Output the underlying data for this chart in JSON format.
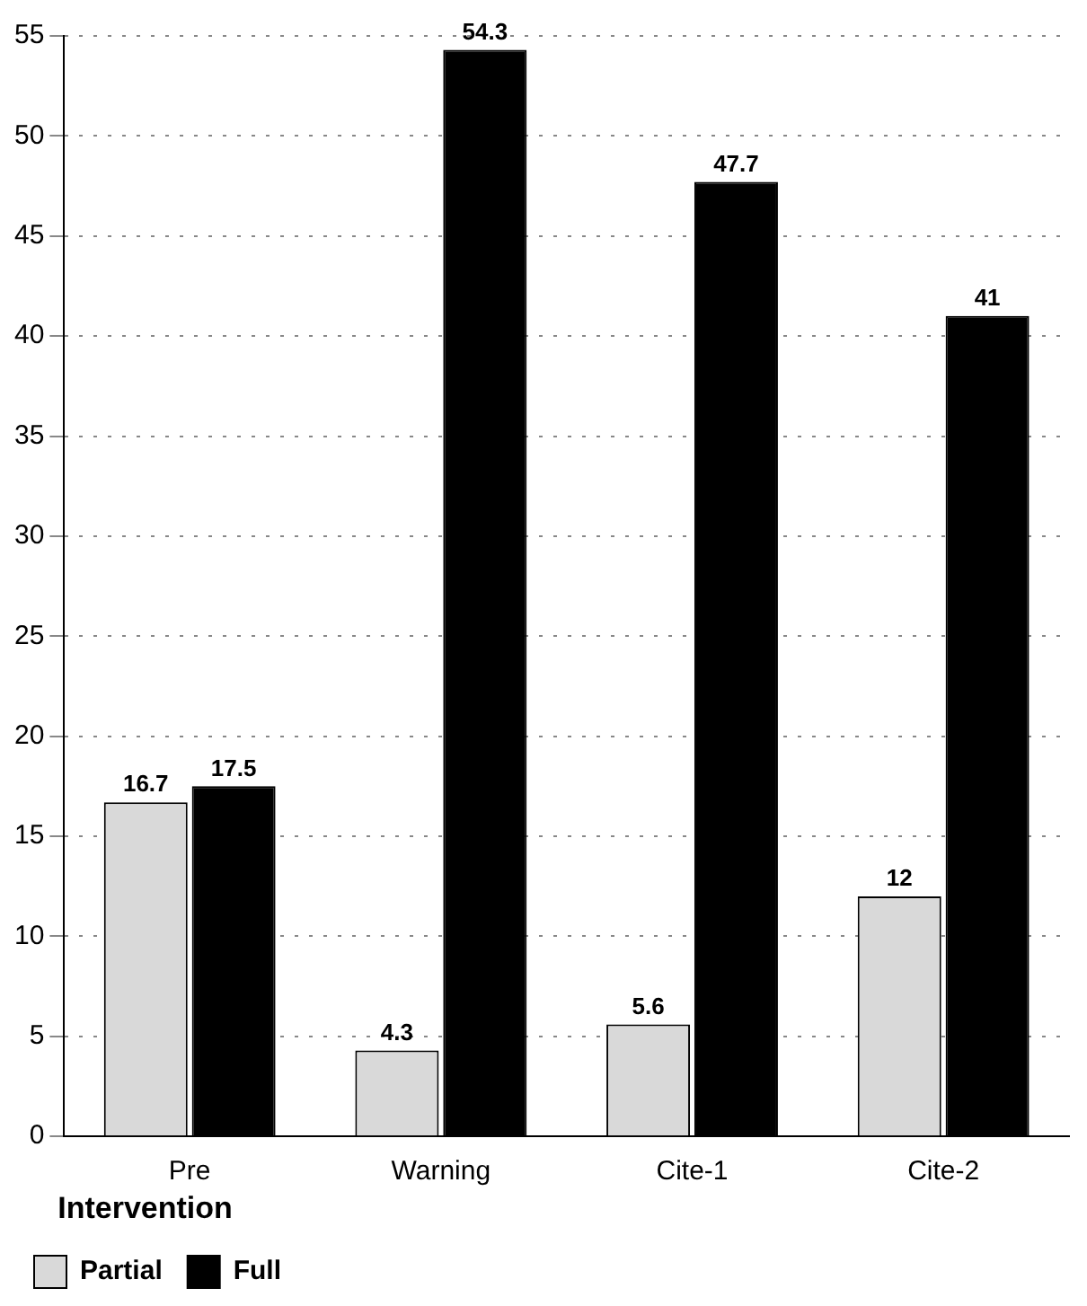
{
  "chart_data": {
    "type": "bar",
    "categories": [
      "Pre",
      "Warning",
      "Cite-1",
      "Cite-2"
    ],
    "series": [
      {
        "name": "Partial",
        "color": "#d9d9d9",
        "values": [
          16.7,
          4.3,
          5.6,
          12
        ]
      },
      {
        "name": "Full",
        "color": "#000000",
        "values": [
          17.5,
          54.3,
          47.7,
          41
        ]
      }
    ],
    "ylim": [
      0,
      55
    ],
    "yticks": [
      0,
      5,
      10,
      15,
      20,
      25,
      30,
      35,
      40,
      45,
      50,
      55
    ],
    "grid": "y",
    "legend": "bottom left",
    "legend_title": "Intervention",
    "data_labels": true
  }
}
